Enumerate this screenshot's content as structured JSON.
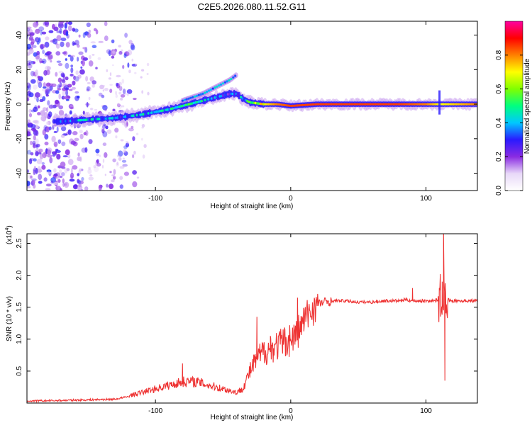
{
  "title": "C2E5.2026.080.11.52.G11",
  "chart_data": [
    {
      "type": "heatmap",
      "title": "C2E5.2026.080.11.52.G11",
      "xlabel": "Height of straight line (km)",
      "ylabel": "Frequency (Hz)",
      "xlim": [
        -195,
        138
      ],
      "ylim": [
        -50,
        48
      ],
      "xticks": [
        -100,
        0,
        100
      ],
      "yticks": [
        -40,
        -20,
        0,
        20,
        40
      ],
      "colorbar": {
        "label": "Normalized spectral amplitude",
        "range": [
          0,
          1
        ],
        "ticks": [
          "0.0",
          "0.2",
          "0.4",
          "0.6",
          "0.8"
        ],
        "tick_values": [
          0.0,
          0.2,
          0.4,
          0.6,
          0.8
        ],
        "colors": [
          "#ffffff",
          "#e8d8f8",
          "#8a2be2",
          "#2a1aff",
          "#00c8ff",
          "#00ff80",
          "#80ff00",
          "#ffff00",
          "#ff8000",
          "#ff0000",
          "#ff00a0"
        ]
      },
      "ridge": {
        "x": [
          -170,
          -150,
          -130,
          -110,
          -90,
          -70,
          -55,
          -45,
          -40,
          -35,
          -30,
          -20,
          -10,
          0,
          20,
          50,
          80,
          100,
          110,
          112,
          138
        ],
        "y": [
          -10,
          -9,
          -8,
          -6,
          -3,
          1,
          4,
          6,
          6,
          3,
          1,
          0,
          0,
          -1,
          0,
          0,
          0,
          0,
          0,
          0,
          0
        ],
        "amplitude": [
          0.3,
          0.4,
          0.35,
          0.4,
          0.45,
          0.45,
          0.35,
          0.3,
          0.3,
          0.4,
          0.55,
          0.7,
          0.8,
          0.85,
          0.85,
          0.85,
          0.85,
          0.8,
          0.7,
          0.7,
          0.8
        ]
      },
      "branch": {
        "x": [
          -80,
          -65,
          -55,
          -45,
          -40
        ],
        "y": [
          2,
          6,
          10,
          14,
          17
        ]
      },
      "noise_region": {
        "x_start": -195,
        "x_end": -125
      }
    },
    {
      "type": "line",
      "xlabel": "Height of straight line (km)",
      "ylabel": "SNR (10 * v/v)",
      "y_multiplier": "(x10",
      "y_multiplier_exp": "4",
      "y_multiplier_close": ")",
      "xlim": [
        -195,
        138
      ],
      "ylim": [
        0,
        2.65
      ],
      "xticks": [
        -100,
        0,
        100
      ],
      "yticks": [
        "0.5",
        "1.0",
        "1.5",
        "2.0",
        "2.5"
      ],
      "ytick_values": [
        0.5,
        1.0,
        1.5,
        2.0,
        2.5
      ],
      "color": "#ee3333",
      "series": [
        {
          "name": "SNR",
          "x": [
            -195,
            -170,
            -150,
            -130,
            -120,
            -110,
            -100,
            -90,
            -80,
            -70,
            -60,
            -50,
            -40,
            -35,
            -30,
            -25,
            -20,
            -15,
            -10,
            -5,
            0,
            5,
            10,
            15,
            20,
            25,
            30,
            40,
            50,
            60,
            70,
            80,
            85,
            90,
            100,
            105,
            110,
            112,
            113,
            114,
            115,
            120,
            130,
            138
          ],
          "y": [
            0.03,
            0.04,
            0.05,
            0.06,
            0.1,
            0.15,
            0.2,
            0.25,
            0.3,
            0.3,
            0.25,
            0.2,
            0.15,
            0.25,
            0.5,
            0.7,
            0.8,
            0.85,
            0.9,
            0.95,
            1.0,
            1.1,
            1.3,
            1.45,
            1.55,
            1.58,
            1.6,
            1.6,
            1.58,
            1.58,
            1.6,
            1.6,
            1.62,
            1.6,
            1.6,
            1.6,
            1.62,
            1.62,
            1.6,
            1.6,
            1.62,
            1.6,
            1.6,
            1.6
          ]
        }
      ],
      "spikes": [
        {
          "x": -80,
          "y": 0.62
        },
        {
          "x": -25,
          "y": 1.35
        },
        {
          "x": -15,
          "y": 1.05
        },
        {
          "x": 5,
          "y": 1.65
        },
        {
          "x": 90,
          "y": 1.8
        },
        {
          "x": 113,
          "y": 2.65
        },
        {
          "x": 114,
          "y": 0.35
        },
        {
          "x": 112,
          "y": 1.9
        }
      ]
    }
  ]
}
